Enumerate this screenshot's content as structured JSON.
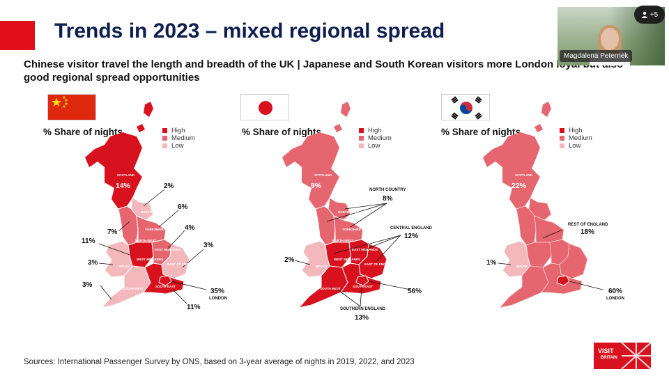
{
  "slide": {
    "title": "Trends in 2023 – mixed regional spread",
    "subtitle": "Chinese visitor travel the length and breadth of the UK | Japanese and South Korean visitors more London loyal but also good regional spread opportunities",
    "source": "Sources: International Passenger Survey by ONS, based on 3-year average of nights in 2019, 2022, and 2023",
    "logo": {
      "line1": "VISIT",
      "line2": "BRITAIN"
    }
  },
  "legend": {
    "high": "High",
    "medium": "Medium",
    "low": "Low"
  },
  "colors": {
    "high": "#d7121e",
    "medium": "#e5666e",
    "low": "#f3b8bc",
    "navy": "#0e1e4f"
  },
  "maps": {
    "china": {
      "heading": "% Share of nights",
      "flag_icon": "china-flag-icon",
      "regions": {
        "scotland": {
          "label": "SCOTLAND",
          "value": "14%"
        },
        "north_east": {
          "label": "NORTH EAST",
          "value": "2%"
        },
        "yorkshire": {
          "label": "YORKSHIRE AND THE HUMBER",
          "value": "6%"
        },
        "north_west": {
          "label": "NORTH WEST",
          "value": "7%"
        },
        "east_midlands": {
          "label": "EAST MIDLANDS",
          "value": "4%"
        },
        "east_of_england": {
          "label": "EAST OF ENGLAND",
          "value": "3%"
        },
        "west_midlands": {
          "label": "WEST MIDLANDS",
          "value": "11%"
        },
        "wales": {
          "label": "WALES",
          "value": "3%"
        },
        "south_west": {
          "label": "SOUTH WEST",
          "value": "3%"
        },
        "south_east": {
          "label": "SOUTH EAST",
          "value": "11%"
        },
        "london": {
          "label": "LONDON",
          "value": "35%"
        }
      }
    },
    "japan": {
      "heading": "% Share of nights",
      "flag_icon": "japan-flag-icon",
      "regions": {
        "scotland": {
          "label": "SCOTLAND",
          "value": "9%"
        },
        "north_country": {
          "label": "NORTH COUNTRY",
          "value": "8%"
        },
        "central_england": {
          "label": "CENTRAL ENGLAND",
          "value": "12%"
        },
        "wales": {
          "label": "WALES",
          "value": "2%"
        },
        "london": {
          "value": "56%"
        },
        "southern_england": {
          "label": "SOUTHERN ENGLAND",
          "value": "13%"
        },
        "inner_labels": {
          "north_east": "NORTH EAST",
          "north_west": "NORTH WEST",
          "yorkshire": "YORKSHIRE AND THE HUMBER",
          "east_midlands": "EAST MIDLANDS",
          "west_midlands": "WEST MIDLANDS",
          "east_of_england": "EAST OF ENGLAND",
          "south_west": "SOUTH WEST",
          "south_east": "SOUTH EAST"
        }
      }
    },
    "korea": {
      "heading": "% Share of nights",
      "flag_icon": "south-korea-flag-icon",
      "regions": {
        "scotland": {
          "label": "SCOTLAND",
          "value": "22%"
        },
        "rest_of_england": {
          "label": "REST OF ENGLAND",
          "value": "18%"
        },
        "wales": {
          "label": "WALES",
          "value": "1%"
        },
        "london": {
          "label": "LONDON",
          "value": "60%"
        }
      }
    }
  },
  "meeting": {
    "participant_name": "Magdalena Peternek",
    "participants_extra": "+5",
    "participants_icon": "person-icon"
  }
}
